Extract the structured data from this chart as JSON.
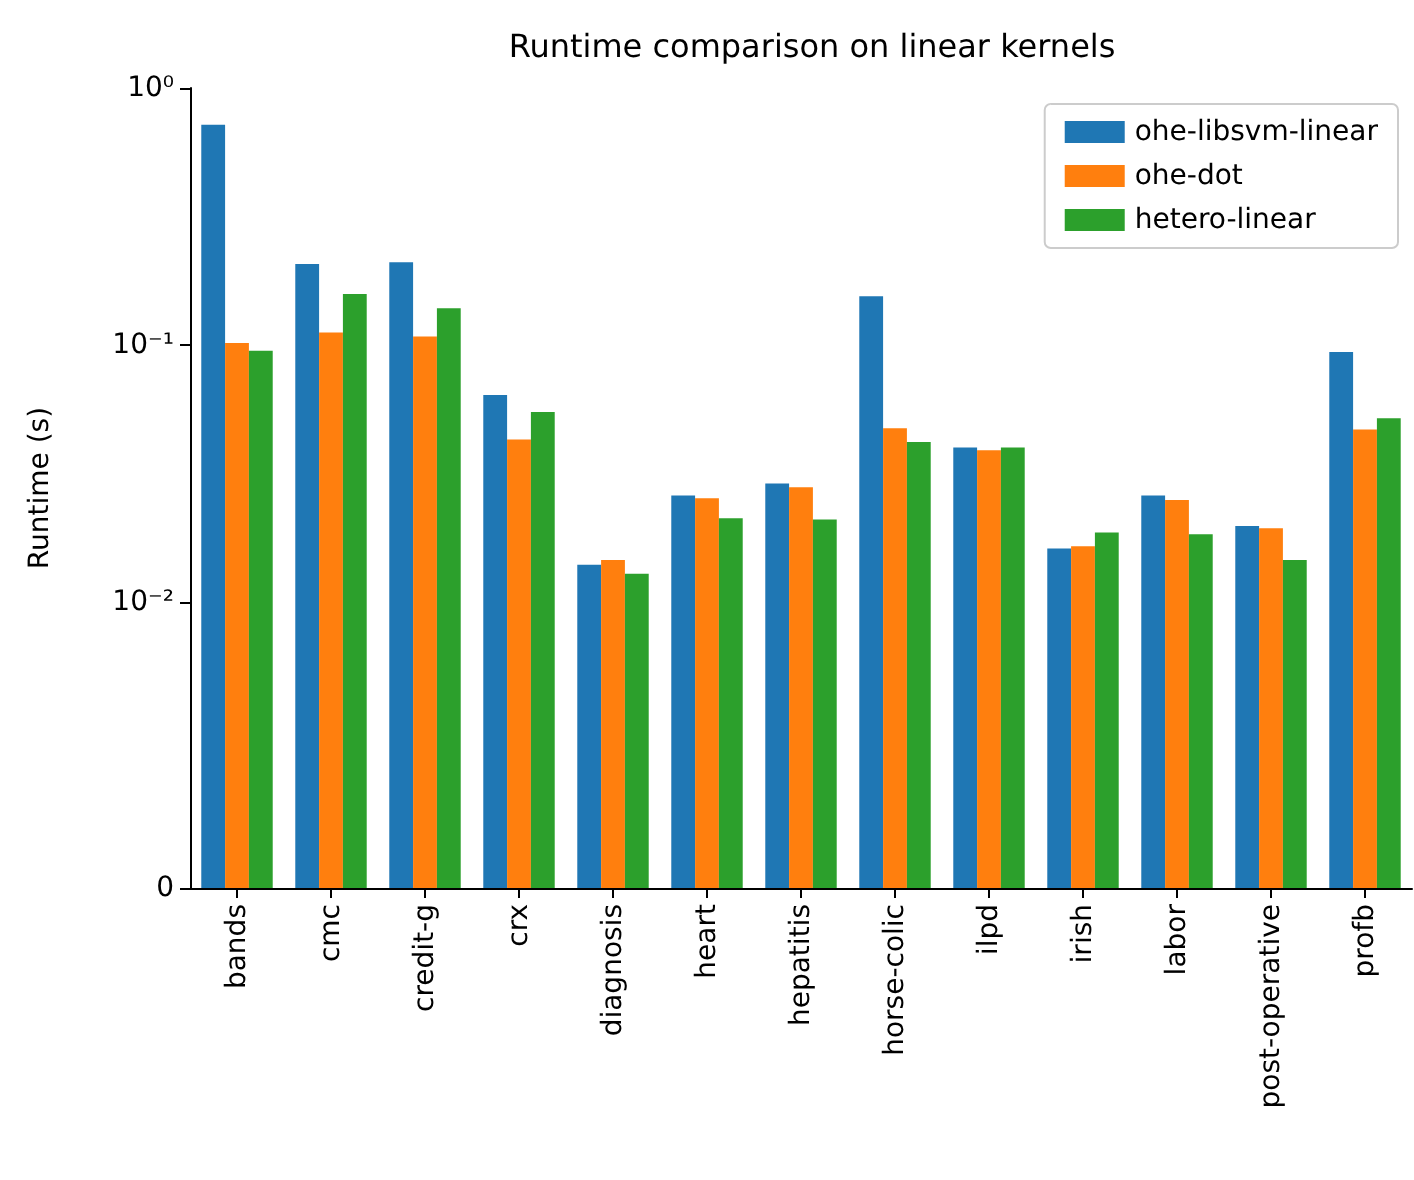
{
  "chart_data": {
    "type": "bar",
    "title": "Runtime comparison on linear kernels",
    "ylabel": "Runtime (s)",
    "categories": [
      "bands",
      "cmc",
      "credit-g",
      "crx",
      "diagnosis",
      "heart",
      "hepatitis",
      "horse-colic",
      "ilpd",
      "irish",
      "labor",
      "post-operative",
      "profb"
    ],
    "series": [
      {
        "name": "ohe-libsvm-linear",
        "color": "#1f77b4",
        "values": [
          0.72,
          0.207,
          0.21,
          0.064,
          0.014,
          0.026,
          0.029,
          0.155,
          0.04,
          0.0162,
          0.026,
          0.0198,
          0.094
        ]
      },
      {
        "name": "ohe-dot",
        "color": "#ff7f0e",
        "values": [
          0.102,
          0.112,
          0.108,
          0.043,
          0.0146,
          0.0254,
          0.028,
          0.0475,
          0.039,
          0.0165,
          0.025,
          0.0194,
          0.047
        ]
      },
      {
        "name": "hetero-linear",
        "color": "#2ca02c",
        "values": [
          0.095,
          0.158,
          0.139,
          0.055,
          0.0129,
          0.0212,
          0.021,
          0.042,
          0.04,
          0.0187,
          0.0184,
          0.0146,
          0.052
        ]
      }
    ],
    "log": "y",
    "ylim": [
      0,
      1
    ],
    "yticks": [
      0,
      {
        "value": 0.01,
        "label": "10⁻²"
      },
      {
        "value": 0.1,
        "label": "10⁻¹"
      },
      {
        "value": 1,
        "label": "10⁰"
      }
    ],
    "legend": "top right",
    "grid": false
  }
}
